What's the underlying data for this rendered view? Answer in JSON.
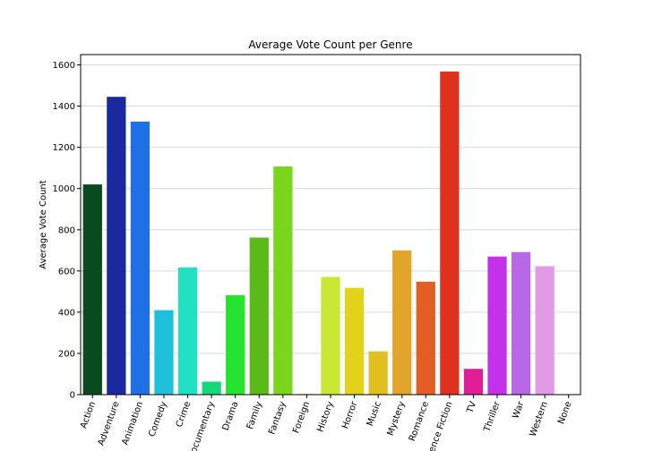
{
  "chart_data": {
    "type": "bar",
    "title": "Average Vote Count per Genre",
    "xlabel": "",
    "ylabel": "Average Vote Count",
    "ylim": [
      0,
      1650
    ],
    "yticks": [
      0,
      200,
      400,
      600,
      800,
      1000,
      1200,
      1400,
      1600
    ],
    "grid": "y",
    "categories": [
      "Action",
      "Adventure",
      "Animation",
      "Comedy",
      "Crime",
      "Documentary",
      "Drama",
      "Family",
      "Fantasy",
      "Foreign",
      "History",
      "Horror",
      "Music",
      "Mystery",
      "Romance",
      "Science Fiction",
      "TV",
      "Thriller",
      "War",
      "Western",
      "None"
    ],
    "values": [
      1020,
      1445,
      1325,
      410,
      617,
      63,
      483,
      762,
      1107,
      3,
      571,
      518,
      210,
      700,
      548,
      1568,
      125,
      670,
      692,
      623,
      0
    ],
    "colors": [
      "#0a4a1f",
      "#1a29a0",
      "#1f6fe6",
      "#1fc0dc",
      "#22e0c2",
      "#14d97a",
      "#25e32e",
      "#5cba18",
      "#7ad61a",
      "#a6e51e",
      "#c8e834",
      "#e2d31a",
      "#e2bf20",
      "#e2a529",
      "#e35e24",
      "#e0311f",
      "#e01e98",
      "#c332e8",
      "#b868e6",
      "#e39ae6",
      "#ffffff"
    ]
  }
}
